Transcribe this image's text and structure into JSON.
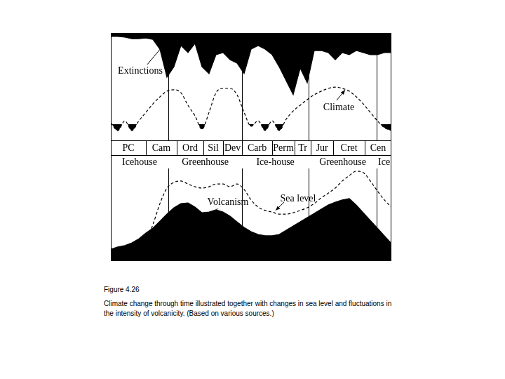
{
  "chart_data": {
    "type": "line",
    "tick_labels": false,
    "grid": false,
    "xlim": [
      0,
      100
    ],
    "ylim": [
      0,
      100
    ],
    "x": [
      0,
      2.5,
      5,
      7.5,
      10,
      12.5,
      15,
      17.5,
      20,
      22.5,
      25,
      27.5,
      30,
      32.5,
      35,
      37.5,
      40,
      42.5,
      45,
      47.5,
      50,
      52.5,
      55,
      57.5,
      60,
      62.5,
      65,
      67.5,
      70,
      72.5,
      75,
      77.5,
      80,
      82.5,
      85,
      87.5,
      90,
      92.5,
      95,
      97.5,
      100
    ],
    "series": [
      {
        "name": "Extinctions",
        "type": "area",
        "color": "#000000",
        "marker": "none",
        "line_style": "solid",
        "values": [
          98.5,
          98.5,
          98.2,
          97.5,
          97.5,
          97.8,
          97.2,
          92.9,
          80.6,
          85.2,
          94.5,
          91.4,
          95.4,
          85.2,
          82.2,
          90.5,
          91.4,
          88.3,
          86.8,
          82.2,
          92.9,
          94.5,
          92.9,
          90.5,
          85.2,
          79.1,
          73,
          84.6,
          78.2,
          92.3,
          92.3,
          91.4,
          88.3,
          91.4,
          90.5,
          92.3,
          91.4,
          90.5,
          90.5,
          91.4,
          91.4
        ]
      },
      {
        "name": "Volcanism",
        "type": "area",
        "color": "#000000",
        "marker": "none",
        "line_style": "solid",
        "values": [
          5.2,
          6.2,
          6.8,
          8,
          9.8,
          12.3,
          14.5,
          17.5,
          20.6,
          23.4,
          25.2,
          25.5,
          23.7,
          21.2,
          21.5,
          22.5,
          21.5,
          19.7,
          17.2,
          14.8,
          12.9,
          11.7,
          11.1,
          11.1,
          11.7,
          13.5,
          15.4,
          17.2,
          19.1,
          20.9,
          22.8,
          24.6,
          25.8,
          26.8,
          27.4,
          24.6,
          21.2,
          17.8,
          14.5,
          11.1,
          7.7
        ]
      },
      {
        "name": "Climate",
        "type": "line",
        "color": "#000000",
        "marker": "none",
        "line_style": "dashed",
        "glaciation_level": 60,
        "values": [
          60.6,
          57.2,
          61.5,
          57.2,
          61.5,
          65.2,
          68.9,
          72,
          74.5,
          75.1,
          73.8,
          68.3,
          63.7,
          57.8,
          65.2,
          73.8,
          75.7,
          75.7,
          72.9,
          65.2,
          59.1,
          61.5,
          57.2,
          61.5,
          57.2,
          62.2,
          65.8,
          68.3,
          70.8,
          72.9,
          74.5,
          75.7,
          76.3,
          75.7,
          74.5,
          72,
          68.9,
          65.2,
          61.5,
          58.5,
          57.2
        ]
      },
      {
        "name": "Sea level",
        "type": "line",
        "color": "#000000",
        "marker": "none",
        "line_style": "dashed",
        "values": [
          null,
          null,
          null,
          null,
          null,
          8.3,
          16,
          25.2,
          32,
          34.5,
          35.1,
          33.8,
          32.6,
          32,
          32.6,
          33.8,
          33.8,
          32.6,
          33.8,
          31.4,
          26.8,
          23.7,
          22.2,
          21.5,
          20.6,
          20.6,
          21.2,
          22.2,
          23.4,
          25.2,
          27.7,
          29.8,
          32,
          35.1,
          37.5,
          39.4,
          38.8,
          35.1,
          30.8,
          26.8,
          23.7
        ]
      }
    ],
    "periods": [
      {
        "label": "PC",
        "start": 0,
        "end": 12.5
      },
      {
        "label": "Cam",
        "start": 12.5,
        "end": 23.5
      },
      {
        "label": "Ord",
        "start": 23.5,
        "end": 33
      },
      {
        "label": "Sil",
        "start": 33,
        "end": 40
      },
      {
        "label": "Dev",
        "start": 40,
        "end": 46.8
      },
      {
        "label": "Carb",
        "start": 46.8,
        "end": 57.5
      },
      {
        "label": "Perm",
        "start": 57.5,
        "end": 65.5
      },
      {
        "label": "Tr",
        "start": 65.5,
        "end": 71.3
      },
      {
        "label": "Jur",
        "start": 71.3,
        "end": 79.3
      },
      {
        "label": "Cret",
        "start": 79.3,
        "end": 90.5
      },
      {
        "label": "Cen",
        "start": 90.5,
        "end": 100
      }
    ],
    "regimes": [
      {
        "label": "Icehouse",
        "start": 0,
        "end": 20.5
      },
      {
        "label": "Greenhouse",
        "start": 20.5,
        "end": 46.8
      },
      {
        "label": "Ice-house",
        "start": 46.8,
        "end": 70.5
      },
      {
        "label": "Greenhouse",
        "start": 70.5,
        "end": 94.8
      },
      {
        "label": "Ice",
        "start": 94.8,
        "end": 100
      }
    ]
  },
  "caption": {
    "label": "Figure 4.26",
    "text": "Climate change through time illustrated together with changes in sea level and fluctuations in the intensity of volcanicity. (Based on various sources.)"
  }
}
